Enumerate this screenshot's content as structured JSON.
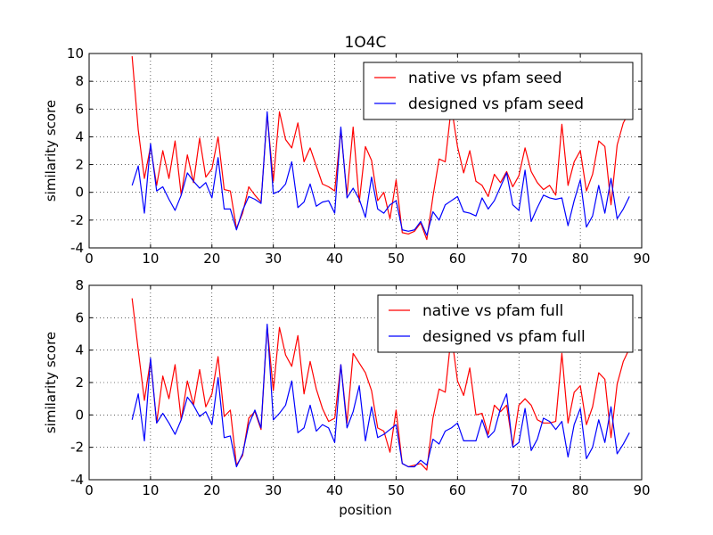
{
  "chart_data": [
    {
      "type": "line",
      "title": "1O4C",
      "xlabel": "",
      "ylabel": "similarity score",
      "xlim": [
        0,
        90
      ],
      "ylim": [
        -4,
        10
      ],
      "xticks": [
        0,
        10,
        20,
        30,
        40,
        50,
        60,
        70,
        80,
        90
      ],
      "yticks": [
        -4,
        -2,
        0,
        2,
        4,
        6,
        8,
        10
      ],
      "grid": true,
      "legend_position": "top-right",
      "series": [
        {
          "name": "native vs pfam seed",
          "color": "#ff0000",
          "x": [
            7,
            8,
            9,
            10,
            11,
            12,
            13,
            14,
            15,
            16,
            17,
            18,
            19,
            20,
            21,
            22,
            23,
            24,
            25,
            26,
            27,
            28,
            29,
            30,
            31,
            32,
            33,
            34,
            35,
            36,
            37,
            38,
            39,
            40,
            41,
            42,
            43,
            44,
            45,
            46,
            47,
            48,
            49,
            50,
            51,
            52,
            53,
            54,
            55,
            56,
            57,
            58,
            59,
            60,
            61,
            62,
            63,
            64,
            65,
            66,
            67,
            68,
            69,
            70,
            71,
            72,
            73,
            74,
            75,
            76,
            77,
            78,
            79,
            80,
            81,
            82,
            83,
            84,
            85,
            86,
            87,
            88
          ],
          "y": [
            9.8,
            4.5,
            1.0,
            3.3,
            0.5,
            3.0,
            1.0,
            3.7,
            -0.2,
            2.7,
            0.7,
            3.9,
            1.1,
            1.7,
            4.0,
            0.2,
            0.1,
            -2.6,
            -1.5,
            0.4,
            -0.2,
            -0.7,
            5.6,
            0.8,
            5.8,
            3.8,
            3.2,
            5.0,
            2.2,
            3.2,
            1.9,
            0.6,
            0.4,
            0.1,
            4.5,
            -0.2,
            4.7,
            -0.7,
            3.3,
            2.3,
            -0.6,
            0.0,
            -1.9,
            0.9,
            -2.9,
            -3.0,
            -2.8,
            -2.2,
            -3.4,
            -0.3,
            2.4,
            2.2,
            6.2,
            3.3,
            1.4,
            3.0,
            0.8,
            0.5,
            -0.3,
            1.3,
            0.7,
            1.5,
            0.4,
            1.2,
            3.2,
            1.5,
            0.7,
            0.2,
            0.5,
            -0.2,
            4.9,
            0.5,
            2.2,
            3.0,
            0.1,
            1.3,
            3.7,
            3.3,
            -0.9,
            3.4,
            5.0,
            5.8
          ]
        },
        {
          "name": "designed vs pfam seed",
          "color": "#0000ff",
          "x": [
            7,
            8,
            9,
            10,
            11,
            12,
            13,
            14,
            15,
            16,
            17,
            18,
            19,
            20,
            21,
            22,
            23,
            24,
            25,
            26,
            27,
            28,
            29,
            30,
            31,
            32,
            33,
            34,
            35,
            36,
            37,
            38,
            39,
            40,
            41,
            42,
            43,
            44,
            45,
            46,
            47,
            48,
            49,
            50,
            51,
            52,
            53,
            54,
            55,
            56,
            57,
            58,
            59,
            60,
            61,
            62,
            63,
            64,
            65,
            66,
            67,
            68,
            69,
            70,
            71,
            72,
            73,
            74,
            75,
            76,
            77,
            78,
            79,
            80,
            81,
            82,
            83,
            84,
            85,
            86,
            87,
            88
          ],
          "y": [
            0.5,
            1.9,
            -1.5,
            3.5,
            0.1,
            0.4,
            -0.5,
            -1.3,
            -0.2,
            1.4,
            0.8,
            0.3,
            0.7,
            -0.4,
            2.5,
            -1.2,
            -1.2,
            -2.7,
            -1.3,
            -0.3,
            -0.5,
            -0.8,
            5.8,
            -0.1,
            0.1,
            0.6,
            2.2,
            -1.1,
            -0.7,
            0.6,
            -1.0,
            -0.7,
            -0.6,
            -1.5,
            4.7,
            -0.4,
            0.3,
            -0.5,
            -1.8,
            1.1,
            -1.2,
            -1.5,
            -0.9,
            -0.6,
            -2.7,
            -2.8,
            -2.7,
            -2.1,
            -3.1,
            -1.4,
            -2.0,
            -0.9,
            -0.6,
            -0.3,
            -1.4,
            -1.5,
            -1.7,
            -0.4,
            -1.2,
            -0.6,
            0.4,
            1.4,
            -0.9,
            -1.3,
            1.6,
            -2.1,
            -1.1,
            -0.2,
            -0.4,
            -0.5,
            -0.4,
            -2.4,
            -0.6,
            0.9,
            -2.5,
            -1.7,
            0.5,
            -1.5,
            1.0,
            -1.9,
            -1.2,
            -0.3
          ]
        }
      ]
    },
    {
      "type": "line",
      "title": "",
      "xlabel": "position",
      "ylabel": "similarity score",
      "xlim": [
        0,
        90
      ],
      "ylim": [
        -4,
        8
      ],
      "xticks": [
        0,
        10,
        20,
        30,
        40,
        50,
        60,
        70,
        80,
        90
      ],
      "yticks": [
        -4,
        -2,
        0,
        2,
        4,
        6,
        8
      ],
      "grid": true,
      "legend_position": "top-right",
      "series": [
        {
          "name": "native vs pfam full",
          "color": "#ff0000",
          "x": [
            7,
            8,
            9,
            10,
            11,
            12,
            13,
            14,
            15,
            16,
            17,
            18,
            19,
            20,
            21,
            22,
            23,
            24,
            25,
            26,
            27,
            28,
            29,
            30,
            31,
            32,
            33,
            34,
            35,
            36,
            37,
            38,
            39,
            40,
            41,
            42,
            43,
            44,
            45,
            46,
            47,
            48,
            49,
            50,
            51,
            52,
            53,
            54,
            55,
            56,
            57,
            58,
            59,
            60,
            61,
            62,
            63,
            64,
            65,
            66,
            67,
            68,
            69,
            70,
            71,
            72,
            73,
            74,
            75,
            76,
            77,
            78,
            79,
            80,
            81,
            82,
            83,
            84,
            85,
            86,
            87,
            88
          ],
          "y": [
            7.2,
            4.0,
            0.9,
            3.4,
            -0.5,
            2.4,
            1.0,
            3.1,
            -0.3,
            2.1,
            0.6,
            2.8,
            0.5,
            1.3,
            3.6,
            -0.1,
            0.3,
            -3.1,
            -2.5,
            -0.2,
            0.2,
            -0.9,
            5.5,
            1.5,
            5.4,
            3.7,
            3.0,
            4.9,
            1.3,
            3.3,
            1.6,
            0.4,
            -0.4,
            -0.2,
            3.1,
            -0.5,
            3.8,
            3.2,
            2.6,
            1.5,
            -0.8,
            -1.0,
            -2.3,
            0.3,
            -3.0,
            -3.2,
            -3.1,
            -3.0,
            -3.4,
            -0.2,
            1.6,
            1.4,
            5.0,
            2.1,
            1.2,
            2.9,
            0.0,
            0.1,
            -1.2,
            0.6,
            0.2,
            0.6,
            -1.9,
            0.6,
            1.0,
            0.6,
            -0.3,
            -0.5,
            -0.5,
            -0.4,
            3.8,
            -0.5,
            1.4,
            1.8,
            -0.6,
            0.5,
            2.6,
            2.2,
            -1.4,
            1.9,
            3.3,
            4.1
          ]
        },
        {
          "name": "designed vs pfam full",
          "color": "#0000ff",
          "x": [
            7,
            8,
            9,
            10,
            11,
            12,
            13,
            14,
            15,
            16,
            17,
            18,
            19,
            20,
            21,
            22,
            23,
            24,
            25,
            26,
            27,
            28,
            29,
            30,
            31,
            32,
            33,
            34,
            35,
            36,
            37,
            38,
            39,
            40,
            41,
            42,
            43,
            44,
            45,
            46,
            47,
            48,
            49,
            50,
            51,
            52,
            53,
            54,
            55,
            56,
            57,
            58,
            59,
            60,
            61,
            62,
            63,
            64,
            65,
            66,
            67,
            68,
            69,
            70,
            71,
            72,
            73,
            74,
            75,
            76,
            77,
            78,
            79,
            80,
            81,
            82,
            83,
            84,
            85,
            86,
            87,
            88
          ],
          "y": [
            -0.3,
            1.3,
            -1.6,
            3.5,
            -0.5,
            0.1,
            -0.5,
            -1.2,
            -0.3,
            1.1,
            0.6,
            -0.1,
            0.2,
            -0.6,
            2.3,
            -1.4,
            -1.3,
            -3.2,
            -2.4,
            -0.6,
            0.3,
            -0.8,
            5.6,
            -0.3,
            0.1,
            0.6,
            2.1,
            -1.1,
            -0.8,
            0.6,
            -1.0,
            -0.6,
            -0.8,
            -1.7,
            3.1,
            -0.8,
            0.2,
            1.8,
            -1.6,
            0.5,
            -1.4,
            -1.2,
            -0.9,
            -0.6,
            -3.0,
            -3.2,
            -3.2,
            -2.8,
            -3.1,
            -1.5,
            -1.8,
            -1.0,
            -0.8,
            -0.5,
            -1.6,
            -1.6,
            -1.6,
            -0.3,
            -1.4,
            -1.0,
            0.4,
            1.3,
            -2.0,
            -1.7,
            0.4,
            -2.2,
            -1.5,
            -0.2,
            -0.4,
            -0.9,
            -0.4,
            -2.6,
            -0.6,
            0.4,
            -2.7,
            -2.0,
            -0.3,
            -1.7,
            0.5,
            -2.4,
            -1.8,
            -1.1
          ]
        }
      ]
    }
  ]
}
